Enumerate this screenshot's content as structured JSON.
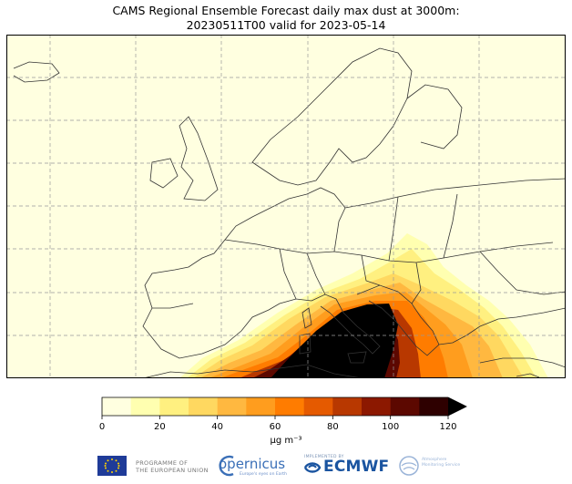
{
  "title": {
    "line1": "CAMS Regional Ensemble Forecast daily max dust at 3000m:",
    "line2": "20230511T00 valid for 2023-05-14"
  },
  "map": {
    "background_color": "#ffffe0",
    "coastline_color": "#333333",
    "gridline_color": "#999999",
    "gridlines": "dashed"
  },
  "colorbar": {
    "ticks": [
      "0",
      "20",
      "40",
      "60",
      "80",
      "100",
      "120"
    ],
    "unit_label": "μg m⁻³",
    "levels": [
      0,
      10,
      20,
      30,
      40,
      50,
      60,
      70,
      80,
      90,
      100,
      110,
      120
    ],
    "colors": [
      "#ffffe0",
      "#ffffb0",
      "#fff080",
      "#ffd860",
      "#ffb840",
      "#ff9d1e",
      "#ff7c00",
      "#e55a00",
      "#b83800",
      "#8c1800",
      "#5c0800",
      "#2e0000"
    ],
    "extend": "max",
    "extend_color": "#000000"
  },
  "logos": {
    "eu_line1": "PROGRAMME OF",
    "eu_line2": "THE EUROPEAN UNION",
    "copernicus": "opernicus",
    "copernicus_sub": "Europe's eyes on Earth",
    "ecmwf_sub": "IMPLEMENTED BY",
    "ecmwf": "ECMWF",
    "atmo_line1": "Atmosphere",
    "atmo_line2": "Monitoring Service"
  }
}
